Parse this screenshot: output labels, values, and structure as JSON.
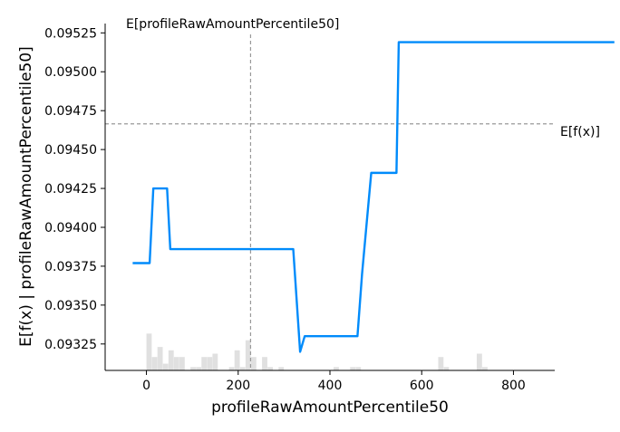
{
  "chart_data": {
    "type": "line",
    "xlabel": "profileRawAmountPercentile50",
    "ylabel": "E[f(x) | profileRawAmountPercentile50]",
    "xlim": [
      -90,
      890
    ],
    "ylim": [
      0.09308,
      0.09531
    ],
    "x_ticks": [
      0,
      200,
      400,
      600,
      800
    ],
    "y_ticks": [
      0.09325,
      0.0935,
      0.09375,
      0.094,
      0.09425,
      0.0945,
      0.09475,
      0.095,
      0.09525
    ],
    "y_tick_labels": [
      "0.09325",
      "0.09350",
      "0.09375",
      "0.09400",
      "0.09425",
      "0.09450",
      "0.09475",
      "0.09500",
      "0.09525"
    ],
    "series": [
      {
        "color": "#008bfb",
        "x": [
          -30,
          7,
          15,
          45,
          52,
          320,
          335,
          345,
          350,
          460,
          470,
          490,
          510,
          530,
          545,
          550,
          565,
          575,
          1020
        ],
        "y": [
          0.09377,
          0.09377,
          0.09425,
          0.09425,
          0.09386,
          0.09386,
          0.0932,
          0.0933,
          0.0933,
          0.0933,
          0.0937,
          0.09435,
          0.09435,
          0.09435,
          0.09435,
          0.09519,
          0.09519,
          0.09519,
          0.09519
        ]
      }
    ],
    "expected_value": {
      "label": "E[f(x)]",
      "y": 0.094665,
      "color": "#999999",
      "style": "dashed"
    },
    "expected_feature_value": {
      "label": "E[profileRawAmountPercentile50]",
      "x": 227,
      "color": "#999999",
      "style": "dashed"
    },
    "histogram": {
      "color": "#cccccc",
      "opacity": 0.6,
      "bin_width": 11.5,
      "bins": [
        {
          "x": 0,
          "count": 11
        },
        {
          "x": 12,
          "count": 4
        },
        {
          "x": 24,
          "count": 7
        },
        {
          "x": 36,
          "count": 2
        },
        {
          "x": 48,
          "count": 6
        },
        {
          "x": 60,
          "count": 4
        },
        {
          "x": 72,
          "count": 4
        },
        {
          "x": 96,
          "count": 1
        },
        {
          "x": 108,
          "count": 1
        },
        {
          "x": 120,
          "count": 4
        },
        {
          "x": 132,
          "count": 4
        },
        {
          "x": 144,
          "count": 5
        },
        {
          "x": 180,
          "count": 1
        },
        {
          "x": 192,
          "count": 6
        },
        {
          "x": 204,
          "count": 1
        },
        {
          "x": 216,
          "count": 9
        },
        {
          "x": 228,
          "count": 4
        },
        {
          "x": 252,
          "count": 4
        },
        {
          "x": 264,
          "count": 1
        },
        {
          "x": 288,
          "count": 1
        },
        {
          "x": 408,
          "count": 1
        },
        {
          "x": 444,
          "count": 1
        },
        {
          "x": 456,
          "count": 1
        },
        {
          "x": 636,
          "count": 4
        },
        {
          "x": 648,
          "count": 1
        },
        {
          "x": 720,
          "count": 5
        },
        {
          "x": 732,
          "count": 1
        }
      ]
    },
    "grid": false,
    "spines": [
      "left",
      "bottom"
    ]
  }
}
